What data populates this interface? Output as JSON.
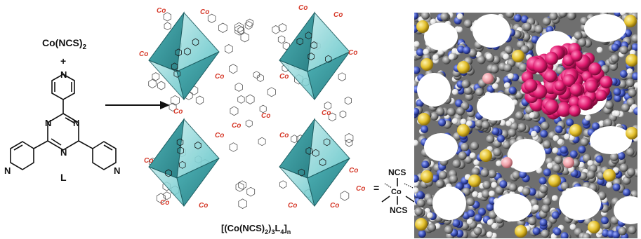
{
  "reactant": {
    "metal_salt": "Co(NCS)",
    "metal_salt_sub": "2",
    "plus": "+",
    "ligand_label": "L",
    "atom_label": "N"
  },
  "framework": {
    "co_label": "Co",
    "equals": "=",
    "formula_prefix": "[(Co(NCS)",
    "formula_sub1": "2",
    "formula_mid": ")",
    "formula_sub2": "3",
    "formula_L": "L",
    "formula_sub3": "4",
    "formula_end": "]",
    "formula_sub4": "n"
  },
  "co_center": {
    "top": "NCS",
    "bottom": "NCS",
    "center": "Co"
  },
  "colors": {
    "octahedron_face": "#5cc3c6",
    "octahedron_dark": "#2f8e93",
    "co_label": "#d63a2a",
    "guest_molecule": "#e0196e",
    "framework_carbon": "#8a8a8a",
    "framework_nitrogen": "#3b50b8",
    "framework_hydrogen": "#e8e8e8",
    "sulfur": "#e3c02c",
    "cobalt": "#f0a0a8"
  }
}
